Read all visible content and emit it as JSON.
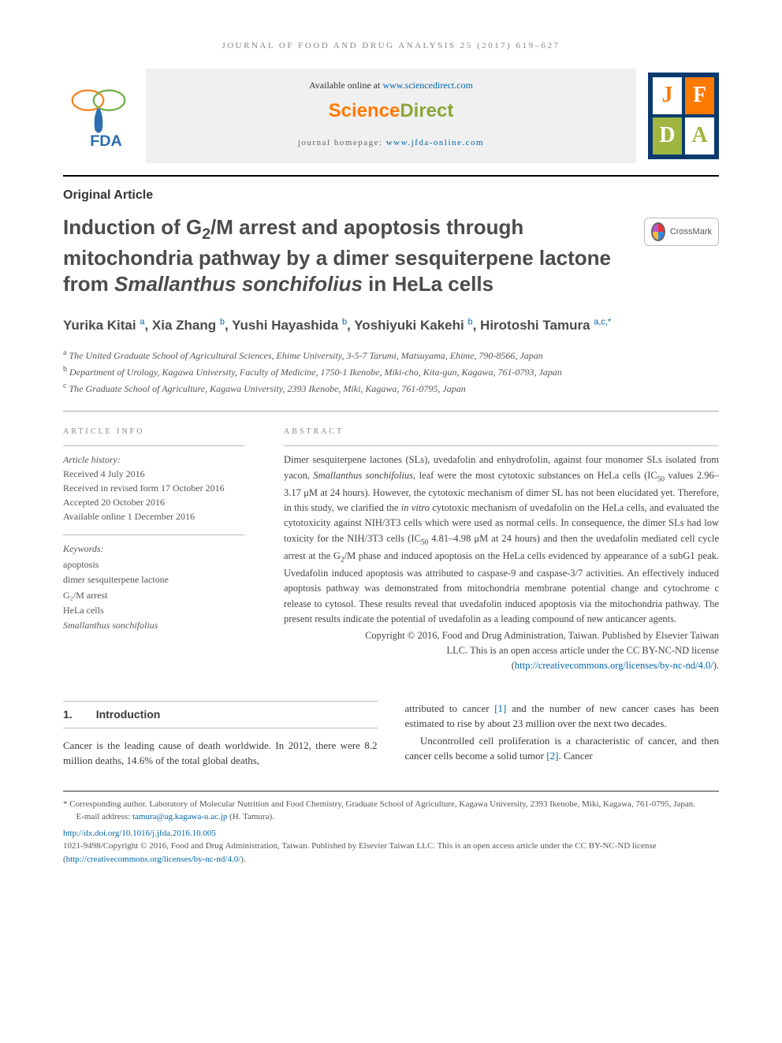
{
  "running_header": "JOURNAL OF FOOD AND DRUG ANALYSIS 25 (2017) 619–627",
  "banner": {
    "available_prefix": "Available online at ",
    "available_link": "www.sciencedirect.com",
    "sd_brand": "ScienceDirect",
    "homepage_prefix": "journal homepage: ",
    "homepage_link": "www.jfda-online.com"
  },
  "jfda": {
    "j": "J",
    "f": "F",
    "d": "D",
    "a": "A"
  },
  "colors": {
    "sd_science": "#ff7a00",
    "sd_direct": "#8aa63a",
    "jfda_bg": "#0b3a6f",
    "jfda_orange": "#ff7a00",
    "jfda_green1": "#9fb640",
    "jfda_green2": "#ffffff",
    "jfda_accent": "#0b3a6f",
    "rule": "#000000",
    "link": "#0066aa",
    "text": "#3a3a3a",
    "muted": "#888888",
    "fda_orange": "#f58220",
    "fda_green": "#6fae45",
    "fda_blue": "#2a6db0"
  },
  "article_type": "Original Article",
  "title": "Induction of G₂/M arrest and apoptosis through mitochondria pathway by a dimer sesquiterpene lactone from Smallanthus sonchifolius in HeLa cells",
  "crossmark": "CrossMark",
  "authors_html": "Yurika Kitai <sup class='aff-link'>a</sup>, Xia Zhang <sup class='aff-link'>b</sup>, Yushi Hayashida <sup class='aff-link'>b</sup>, Yoshiyuki Kakehi <sup class='aff-link'>b</sup>, Hirotoshi Tamura <sup class='aff-link'>a,c,</sup><sup class='aff-link'>*</sup>",
  "affiliations": {
    "a": "The United Graduate School of Agricultural Sciences, Ehime University, 3-5-7 Tarumi, Matsuyama, Ehime, 790-8566, Japan",
    "b": "Department of Urology, Kagawa University, Faculty of Medicine, 1750-1 Ikenobe, Miki-cho, Kita-gun, Kagawa, 761-0793, Japan",
    "c": "The Graduate School of Agriculture, Kagawa University, 2393 Ikenobe, Miki, Kagawa, 761-0795, Japan"
  },
  "info_label": "ARTICLE INFO",
  "abstract_label": "ABSTRACT",
  "history": {
    "heading": "Article history:",
    "received": "Received 4 July 2016",
    "revised": "Received in revised form 17 October 2016",
    "accepted": "Accepted 20 October 2016",
    "online": "Available online 1 December 2016"
  },
  "keywords": {
    "heading": "Keywords:",
    "items": [
      "apoptosis",
      "dimer sesquiterpene lactone",
      "G₂/M arrest",
      "HeLa cells",
      "Smallanthus sonchifolius"
    ]
  },
  "abstract": "Dimer sesquiterpene lactones (SLs), uvedafolin and enhydrofolin, against four monomer SLs isolated from yacon, Smallanthus sonchifolius, leaf were the most cytotoxic substances on HeLa cells (IC₅₀ values 2.96–3.17 μM at 24 hours). However, the cytotoxic mechanism of dimer SL has not been elucidated yet. Therefore, in this study, we clarified the in vitro cytotoxic mechanism of uvedafolin on the HeLa cells, and evaluated the cytotoxicity against NIH/3T3 cells which were used as normal cells. In consequence, the dimer SLs had low toxicity for the NIH/3T3 cells (IC₅₀ 4.81–4.98 μM at 24 hours) and then the uvedafolin mediated cell cycle arrest at the G₂/M phase and induced apoptosis on the HeLa cells evidenced by appearance of a subG1 peak. Uvedafolin induced apoptosis was attributed to caspase-9 and caspase-3/7 activities. An effectively induced apoptosis pathway was demonstrated from mitochondria membrane potential change and cytochrome c release to cytosol. These results reveal that uvedafolin induced apoptosis via the mitochondria pathway. The present results indicate the potential of uvedafolin as a leading compound of new anticancer agents.",
  "copyright": {
    "line1": "Copyright © 2016, Food and Drug Administration, Taiwan. Published by Elsevier Taiwan",
    "line2": "LLC. This is an open access article under the CC BY-NC-ND license (",
    "link": "http://creativecommons.org/licenses/by-nc-nd/4.0/",
    "line3": ")."
  },
  "section1": {
    "num": "1.",
    "title": "Introduction"
  },
  "intro_para1": "Cancer is the leading cause of death worldwide. In 2012, there were 8.2 million deaths, 14.6% of the total global deaths,",
  "intro_para2_a": "attributed to cancer ",
  "intro_ref1": "[1]",
  "intro_para2_b": " and the number of new cancer cases has been estimated to rise by about 23 million over the next two decades.",
  "intro_para3_a": "Uncontrolled cell proliferation is a characteristic of cancer, and then cancer cells become a solid tumor ",
  "intro_ref2": "[2]",
  "intro_para3_b": ". Cancer",
  "footnotes": {
    "corresponding": "* Corresponding author. Laboratory of Molecular Nutrition and Food Chemistry, Graduate School of Agriculture, Kagawa University, 2393 Ikenobe, Miki, Kagawa, 761-0795, Japan.",
    "email_label": "E-mail address: ",
    "email": "tamura@ag.kagawa-u.ac.jp",
    "email_suffix": " (H. Tamura).",
    "doi": "http://dx.doi.org/10.1016/j.jfda.2016.10.005",
    "issn_line": "1021-9498/Copyright © 2016, Food and Drug Administration, Taiwan. Published by Elsevier Taiwan LLC. This is an open access article under the CC BY-NC-ND license (",
    "issn_link": "http://creativecommons.org/licenses/by-nc-nd/4.0/",
    "issn_suffix": ")."
  }
}
